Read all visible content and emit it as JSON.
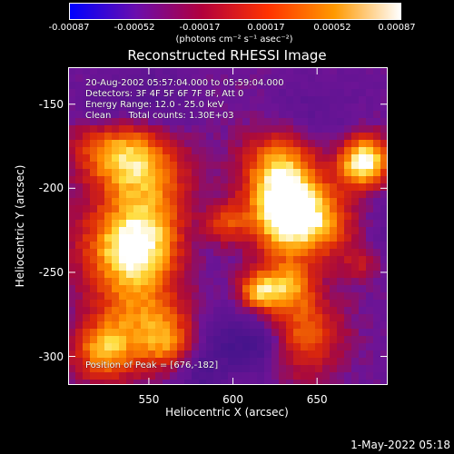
{
  "colorbar": {
    "tick_labels": [
      "-0.00087",
      "-0.00052",
      "-0.00017",
      "0.00017",
      "0.00052",
      "0.00087"
    ],
    "unit_label": "(photons cm⁻² s⁻¹ asec⁻²)",
    "range": [
      -0.00087,
      0.00087
    ],
    "colors": [
      "#0000ff",
      "#6a0dad",
      "#b2003c",
      "#ff3300",
      "#ff9900",
      "#ffffff"
    ]
  },
  "chart_data": {
    "type": "heatmap",
    "title": "Reconstructed RHESSI Image",
    "xlabel": "Heliocentric X (arcsec)",
    "ylabel": "Heliocentric Y (arcsec)",
    "xlim": [
      502,
      692
    ],
    "ylim": [
      -317,
      -128
    ],
    "x_ticks": [
      550,
      600,
      650
    ],
    "y_ticks": [
      -300,
      -250,
      -200,
      -150
    ],
    "peak": [
      676,
      -182
    ],
    "annotations": [
      "20-Aug-2002 05:57:04.000 to 05:59:04.000",
      "Detectors: 3F 4F 5F 6F 7F 8F, Att 0",
      "Energy Range: 12.0 - 25.0 keV",
      "Clean      Total counts: 1.30E+03"
    ],
    "peak_label": "Position of Peak = [676,-182]"
  },
  "footer": {
    "timestamp": "1-May-2022 05:18"
  }
}
